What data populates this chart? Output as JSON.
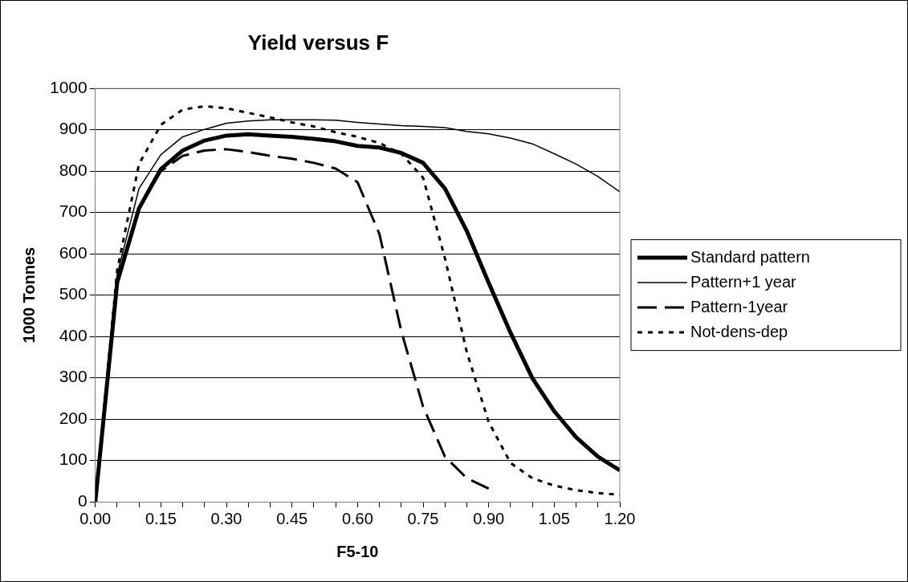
{
  "chart_data": {
    "type": "line",
    "title": "Yield versus F",
    "xlabel": "F5-10",
    "ylabel": "1000 Tonnes",
    "x": [
      0,
      0.05,
      0.1,
      0.15,
      0.2,
      0.25,
      0.3,
      0.35,
      0.4,
      0.45,
      0.5,
      0.55,
      0.6,
      0.65,
      0.7,
      0.75,
      0.8,
      0.85,
      0.9,
      0.95,
      1.0,
      1.05,
      1.1,
      1.15,
      1.2
    ],
    "series": [
      {
        "name": "Standard pattern",
        "color": "#000000",
        "line_style": "solid",
        "values": [
          0,
          530,
          710,
          805,
          850,
          874,
          886,
          889,
          886,
          883,
          878,
          872,
          861,
          857,
          844,
          820,
          758,
          655,
          530,
          409,
          299,
          219,
          156,
          109,
          76
        ]
      },
      {
        "name": "Pattern+1 year",
        "color": "#000000",
        "line_style": "solid",
        "values": [
          0,
          550,
          758,
          840,
          883,
          901,
          916,
          921,
          924,
          924,
          924,
          923,
          918,
          914,
          910,
          908,
          905,
          896,
          890,
          880,
          866,
          842,
          817,
          787,
          750
        ]
      },
      {
        "name": "Pattern-1year",
        "color": "#000000",
        "line_style": "dashed",
        "values": [
          0,
          540,
          710,
          800,
          837,
          850,
          853,
          846,
          837,
          830,
          820,
          806,
          773,
          648,
          413,
          230,
          109,
          57,
          32,
          null,
          null,
          null,
          null,
          null,
          null
        ]
      },
      {
        "name": "Not-dens-dep",
        "color": "#000000",
        "line_style": "dotted",
        "values": [
          0,
          560,
          817,
          912,
          949,
          957,
          952,
          941,
          930,
          918,
          908,
          894,
          883,
          868,
          842,
          784,
          589,
          362,
          193,
          94,
          57,
          39,
          28,
          21,
          17
        ]
      }
    ],
    "xlim": [
      0,
      1.2
    ],
    "xticks": [
      {
        "value": 0,
        "label": "0.00"
      },
      {
        "value": 0.05,
        "label": null
      },
      {
        "value": 0.1,
        "label": null
      },
      {
        "value": 0.15,
        "label": "0.15"
      },
      {
        "value": 0.2,
        "label": null
      },
      {
        "value": 0.25,
        "label": null
      },
      {
        "value": 0.3,
        "label": "0.30"
      },
      {
        "value": 0.35,
        "label": null
      },
      {
        "value": 0.4,
        "label": null
      },
      {
        "value": 0.45,
        "label": "0.45"
      },
      {
        "value": 0.5,
        "label": null
      },
      {
        "value": 0.55,
        "label": null
      },
      {
        "value": 0.6,
        "label": "0.60"
      },
      {
        "value": 0.65,
        "label": null
      },
      {
        "value": 0.7,
        "label": null
      },
      {
        "value": 0.75,
        "label": "0.75"
      },
      {
        "value": 0.8,
        "label": null
      },
      {
        "value": 0.85,
        "label": null
      },
      {
        "value": 0.9,
        "label": "0.90"
      },
      {
        "value": 0.95,
        "label": null
      },
      {
        "value": 1.0,
        "label": null
      },
      {
        "value": 1.05,
        "label": "1.05"
      },
      {
        "value": 1.1,
        "label": null
      },
      {
        "value": 1.15,
        "label": null
      },
      {
        "value": 1.2,
        "label": "1.20"
      }
    ],
    "ylim": [
      0,
      1000
    ],
    "yticks": [
      0,
      100,
      200,
      300,
      400,
      500,
      600,
      700,
      800,
      900,
      1000
    ],
    "grid": "y",
    "legend": "right",
    "marker": "none"
  }
}
